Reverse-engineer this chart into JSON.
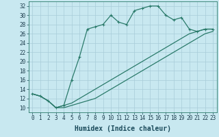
{
  "xlabel": "Humidex (Indice chaleur)",
  "bg_color": "#c8e8f0",
  "line_color": "#2a7a6a",
  "xlim": [
    -0.5,
    23.5
  ],
  "ylim": [
    9,
    33
  ],
  "xticks": [
    0,
    1,
    2,
    3,
    4,
    5,
    6,
    7,
    8,
    9,
    10,
    11,
    12,
    13,
    14,
    15,
    16,
    17,
    18,
    19,
    20,
    21,
    22,
    23
  ],
  "yticks": [
    10,
    12,
    14,
    16,
    18,
    20,
    22,
    24,
    26,
    28,
    30,
    32
  ],
  "line1_x": [
    0,
    1,
    2,
    3,
    4,
    5,
    6,
    7,
    8,
    9,
    10,
    11,
    12,
    13,
    14,
    15,
    16,
    17,
    18,
    19,
    20,
    21,
    22,
    23
  ],
  "line1_y": [
    13,
    12.5,
    11.5,
    10,
    10.5,
    16,
    21,
    27,
    27.5,
    28,
    30,
    28.5,
    28,
    31,
    31.5,
    32,
    32,
    30,
    29,
    29.5,
    27,
    26.5,
    27,
    27
  ],
  "line2_x": [
    0,
    1,
    2,
    3,
    4,
    5,
    6,
    7,
    8,
    9,
    10,
    11,
    12,
    13,
    14,
    15,
    16,
    17,
    18,
    19,
    20,
    21,
    22,
    23
  ],
  "line2_y": [
    13,
    12.5,
    11.5,
    10,
    10.5,
    11,
    12,
    13,
    14,
    15,
    16,
    17,
    18,
    19,
    20,
    21,
    22,
    23,
    24,
    25,
    26,
    26.5,
    27,
    27
  ],
  "line3_x": [
    0,
    1,
    2,
    3,
    4,
    5,
    6,
    7,
    8,
    9,
    10,
    11,
    12,
    13,
    14,
    15,
    16,
    17,
    18,
    19,
    20,
    21,
    22,
    23
  ],
  "line3_y": [
    13,
    12.5,
    11.5,
    10,
    10,
    10.5,
    11,
    11.5,
    12,
    13,
    14,
    15,
    16,
    17,
    18,
    19,
    20,
    21,
    22,
    23,
    24,
    25,
    26,
    26.5
  ],
  "xlabel_fontsize": 7,
  "tick_fontsize": 5.5,
  "grid_color": "#a8ccd8"
}
